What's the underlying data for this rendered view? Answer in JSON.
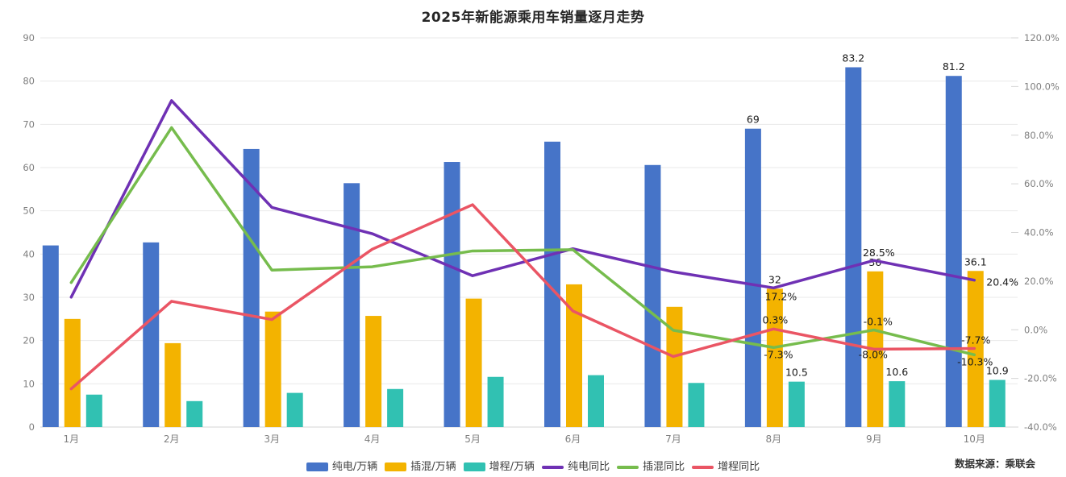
{
  "title": "2025年新能源乘用车销量逐月走势",
  "source": "数据来源：乘联会",
  "colors": {
    "bev_bar": "#4674C8",
    "phev_bar": "#F3B300",
    "erev_bar": "#31C1B2",
    "bev_yoy": "#6F31B4",
    "phev_yoy": "#76BC4D",
    "erev_yoy": "#EA5564",
    "grid": "#EAEAEA",
    "axis_line": "#D5D5D5",
    "axis_label": "#7F7F7F",
    "data_label": "#1A1A1A"
  },
  "left_axis": {
    "values": [
      0,
      10,
      20,
      30,
      40,
      50,
      60,
      70,
      80,
      90
    ]
  },
  "right_axis": {
    "values": [
      -40,
      -20,
      0,
      20,
      40,
      60,
      80,
      100,
      120
    ],
    "labels": [
      "-40.0%",
      "-20.0%",
      "0.0%",
      "20.0%",
      "40.0%",
      "60.0%",
      "80.0%",
      "100.0%",
      "120.0%"
    ]
  },
  "chart_data": {
    "type": "bar+line",
    "categories": [
      "1月",
      "2月",
      "3月",
      "4月",
      "5月",
      "6月",
      "7月",
      "8月",
      "9月",
      "10月"
    ],
    "left_ylim": [
      0,
      90
    ],
    "right_ylim": [
      -40,
      120
    ],
    "grid": true,
    "legend_position": "bottom",
    "bar_series": [
      {
        "name": "纯电/万辆",
        "key": "bev",
        "color_key": "bev_bar",
        "values": [
          42.0,
          42.7,
          64.3,
          56.4,
          61.3,
          66.0,
          60.6,
          69,
          83.2,
          81.2
        ],
        "labels": {
          "7": "69",
          "8": "83.2",
          "9": "81.2"
        }
      },
      {
        "name": "插混/万辆",
        "key": "phev",
        "color_key": "phev_bar",
        "values": [
          25.0,
          19.4,
          26.7,
          25.7,
          29.7,
          33.0,
          27.8,
          32,
          36,
          36.1
        ],
        "labels": {
          "7": "32",
          "8": "36",
          "9": "36.1"
        }
      },
      {
        "name": "增程/万辆",
        "key": "erev",
        "color_key": "erev_bar",
        "values": [
          7.5,
          6.0,
          7.9,
          8.8,
          11.6,
          12.0,
          10.2,
          10.5,
          10.6,
          10.9
        ],
        "labels": {
          "7": "10.5",
          "8": "10.6",
          "9": "10.9"
        }
      }
    ],
    "line_series": [
      {
        "name": "纯电同比",
        "key": "bev-yoy",
        "color_key": "bev_yoy",
        "values": [
          13.4,
          94.2,
          50.3,
          39.5,
          22.2,
          33.3,
          23.8,
          17.2,
          28.5,
          20.4
        ],
        "labels": {
          "7": "17.2%",
          "8": "28.5%",
          "9": "20.4%"
        }
      },
      {
        "name": "插混同比",
        "key": "phev-yoy",
        "color_key": "phev_yoy",
        "values": [
          19.4,
          83.1,
          24.5,
          25.9,
          32.4,
          32.9,
          -0.2,
          -7.3,
          -0.1,
          -10.3
        ],
        "labels": {
          "7": "-7.3%",
          "8": "-0.1%",
          "9": "-10.3%"
        }
      },
      {
        "name": "增程同比",
        "key": "erev-yoy",
        "color_key": "erev_yoy",
        "values": [
          -24.3,
          11.7,
          4.2,
          33.1,
          51.4,
          7.7,
          -11.0,
          0.3,
          -8.0,
          -7.7
        ],
        "labels": {
          "7": "0.3%",
          "8": "-8.0%",
          "9": "-7.7%"
        }
      }
    ]
  }
}
